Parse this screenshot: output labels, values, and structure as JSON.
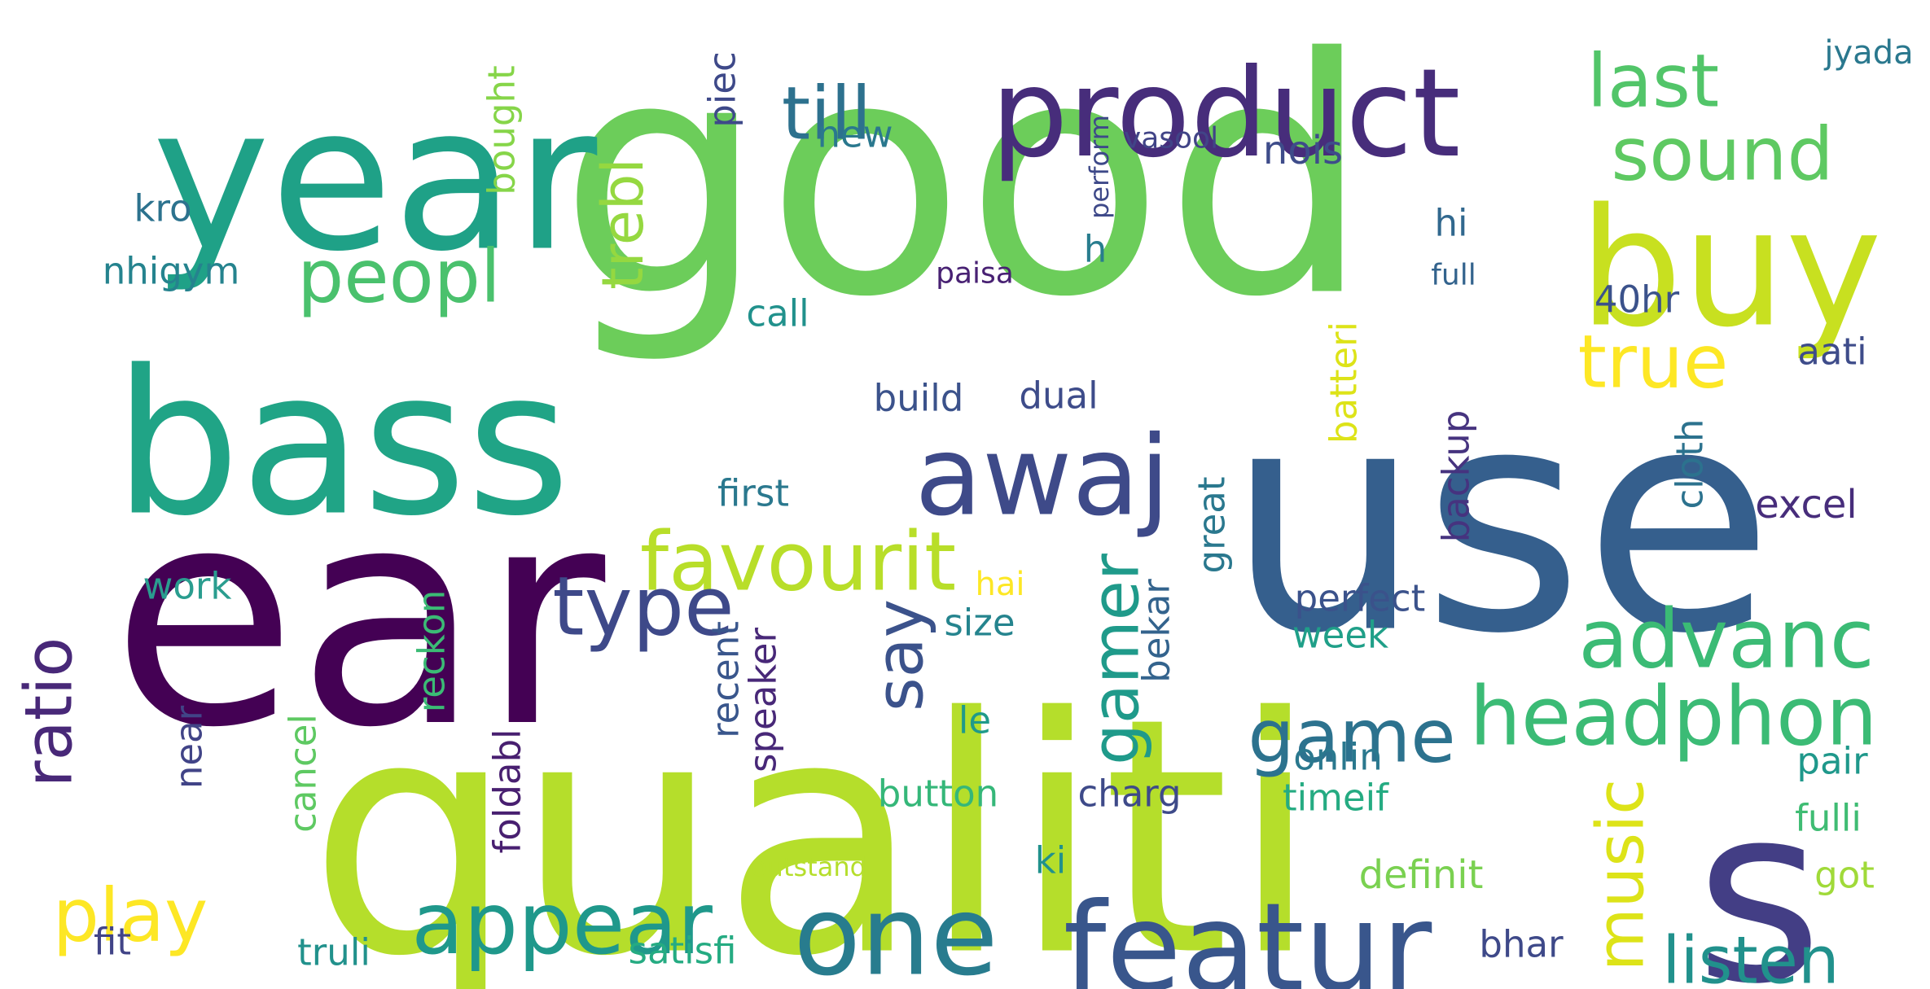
{
  "words": [
    {
      "text": "good",
      "color": "#6ccd5a",
      "rotate": false
    },
    {
      "text": "qualiti",
      "color": "#b5de2b",
      "rotate": false
    },
    {
      "text": "ear",
      "color": "#440154",
      "rotate": false
    },
    {
      "text": "use",
      "color": "#355f8d",
      "rotate": false
    },
    {
      "text": "year",
      "color": "#1fa187",
      "rotate": false
    },
    {
      "text": "bass",
      "color": "#20a486",
      "rotate": false
    },
    {
      "text": "s",
      "color": "#433e85",
      "rotate": false
    },
    {
      "text": "product",
      "color": "#472d7b",
      "rotate": false
    },
    {
      "text": "buy",
      "color": "#c8e020",
      "rotate": false
    },
    {
      "text": "featur",
      "color": "#39568c",
      "rotate": false
    },
    {
      "text": "one",
      "color": "#287c8e",
      "rotate": false
    },
    {
      "text": "awaj",
      "color": "#3e4a89",
      "rotate": false
    },
    {
      "text": "appear",
      "color": "#1f988b",
      "rotate": false
    },
    {
      "text": "headphon",
      "color": "#3bbb75",
      "rotate": false
    },
    {
      "text": "advanc",
      "color": "#3bbb75",
      "rotate": false
    },
    {
      "text": "favourit",
      "color": "#b8de29",
      "rotate": false
    },
    {
      "text": "type",
      "color": "#3e4989",
      "rotate": false
    },
    {
      "text": "peopl",
      "color": "#4ac16d",
      "rotate": false
    },
    {
      "text": "till",
      "color": "#2d718e",
      "rotate": false
    },
    {
      "text": "sound",
      "color": "#5ec962",
      "rotate": false
    },
    {
      "text": "last",
      "color": "#52c569",
      "rotate": false
    },
    {
      "text": "true",
      "color": "#fde725",
      "rotate": false
    },
    {
      "text": "game",
      "color": "#2c728e",
      "rotate": false
    },
    {
      "text": "play",
      "color": "#fde725",
      "rotate": false
    },
    {
      "text": "listen",
      "color": "#21918c",
      "rotate": false
    },
    {
      "text": "music",
      "color": "#dde318",
      "rotate": true
    },
    {
      "text": "gamer",
      "color": "#1f9a8a",
      "rotate": true
    },
    {
      "text": "say",
      "color": "#3b528b",
      "rotate": true
    },
    {
      "text": "ratio",
      "color": "#482878",
      "rotate": true
    },
    {
      "text": "trebl",
      "color": "#95d840",
      "rotate": true
    },
    {
      "text": "jyada",
      "color": "#2a788e",
      "rotate": false
    },
    {
      "text": "nois",
      "color": "#3e4c8a",
      "rotate": false
    },
    {
      "text": "new",
      "color": "#2a788e",
      "rotate": false
    },
    {
      "text": "vasool",
      "color": "#414487",
      "rotate": false
    },
    {
      "text": "kro",
      "color": "#2c728e",
      "rotate": false
    },
    {
      "text": "nhigym",
      "color": "#25838e",
      "rotate": false
    },
    {
      "text": "hi",
      "color": "#31688e",
      "rotate": false
    },
    {
      "text": "paisa",
      "color": "#482173",
      "rotate": false
    },
    {
      "text": "full",
      "color": "#33638d",
      "rotate": false
    },
    {
      "text": "h",
      "color": "#287d8e",
      "rotate": false
    },
    {
      "text": "call",
      "color": "#21918c",
      "rotate": false
    },
    {
      "text": "40hr",
      "color": "#3b528b",
      "rotate": false
    },
    {
      "text": "aati",
      "color": "#3e4c8a",
      "rotate": false
    },
    {
      "text": "build",
      "color": "#3b528b",
      "rotate": false
    },
    {
      "text": "dual",
      "color": "#3e4c8a",
      "rotate": false
    },
    {
      "text": "first",
      "color": "#2a788e",
      "rotate": false
    },
    {
      "text": "excel",
      "color": "#472d7b",
      "rotate": false
    },
    {
      "text": "work",
      "color": "#2a9d8f",
      "rotate": false
    },
    {
      "text": "hai",
      "color": "#fde725",
      "rotate": false
    },
    {
      "text": "perfect",
      "color": "#3b528b",
      "rotate": false
    },
    {
      "text": "week",
      "color": "#1f9f88",
      "rotate": false
    },
    {
      "text": "size",
      "color": "#25848e",
      "rotate": false
    },
    {
      "text": "le",
      "color": "#1f9a8a",
      "rotate": false
    },
    {
      "text": "onlin",
      "color": "#2a788e",
      "rotate": false
    },
    {
      "text": "pair",
      "color": "#1f988b",
      "rotate": false
    },
    {
      "text": "button",
      "color": "#35b779",
      "rotate": false
    },
    {
      "text": "charg",
      "color": "#3e4a89",
      "rotate": false
    },
    {
      "text": "timeif",
      "color": "#25ab82",
      "rotate": false
    },
    {
      "text": "fulli",
      "color": "#3fbc73",
      "rotate": false
    },
    {
      "text": "got",
      "color": "#a0da39",
      "rotate": false
    },
    {
      "text": "ki",
      "color": "#21918c",
      "rotate": false
    },
    {
      "text": "definit",
      "color": "#7ad151",
      "rotate": false
    },
    {
      "text": "outstand",
      "color": "#b5de2b",
      "rotate": false
    },
    {
      "text": "fit",
      "color": "#414487",
      "rotate": false
    },
    {
      "text": "truli",
      "color": "#21918c",
      "rotate": false
    },
    {
      "text": "satisfi",
      "color": "#25ab82",
      "rotate": false
    },
    {
      "text": "bhar",
      "color": "#3e4989",
      "rotate": false
    },
    {
      "text": "piec",
      "color": "#3e4989",
      "rotate": true
    },
    {
      "text": "bought",
      "color": "#86d549",
      "rotate": true
    },
    {
      "text": "perform",
      "color": "#3e4989",
      "rotate": true
    },
    {
      "text": "batteri",
      "color": "#dde318",
      "rotate": true
    },
    {
      "text": "backup",
      "color": "#46337f",
      "rotate": true
    },
    {
      "text": "cloth",
      "color": "#2c728e",
      "rotate": true
    },
    {
      "text": "great",
      "color": "#2a788e",
      "rotate": true
    },
    {
      "text": "bekar",
      "color": "#33638d",
      "rotate": true
    },
    {
      "text": "reckon",
      "color": "#3bbb75",
      "rotate": true
    },
    {
      "text": "recent",
      "color": "#39568c",
      "rotate": true
    },
    {
      "text": "speaker",
      "color": "#482878",
      "rotate": true
    },
    {
      "text": "near",
      "color": "#414487",
      "rotate": true
    },
    {
      "text": "cancel",
      "color": "#5ec962",
      "rotate": true
    },
    {
      "text": "foldabl",
      "color": "#481f70",
      "rotate": true
    }
  ]
}
